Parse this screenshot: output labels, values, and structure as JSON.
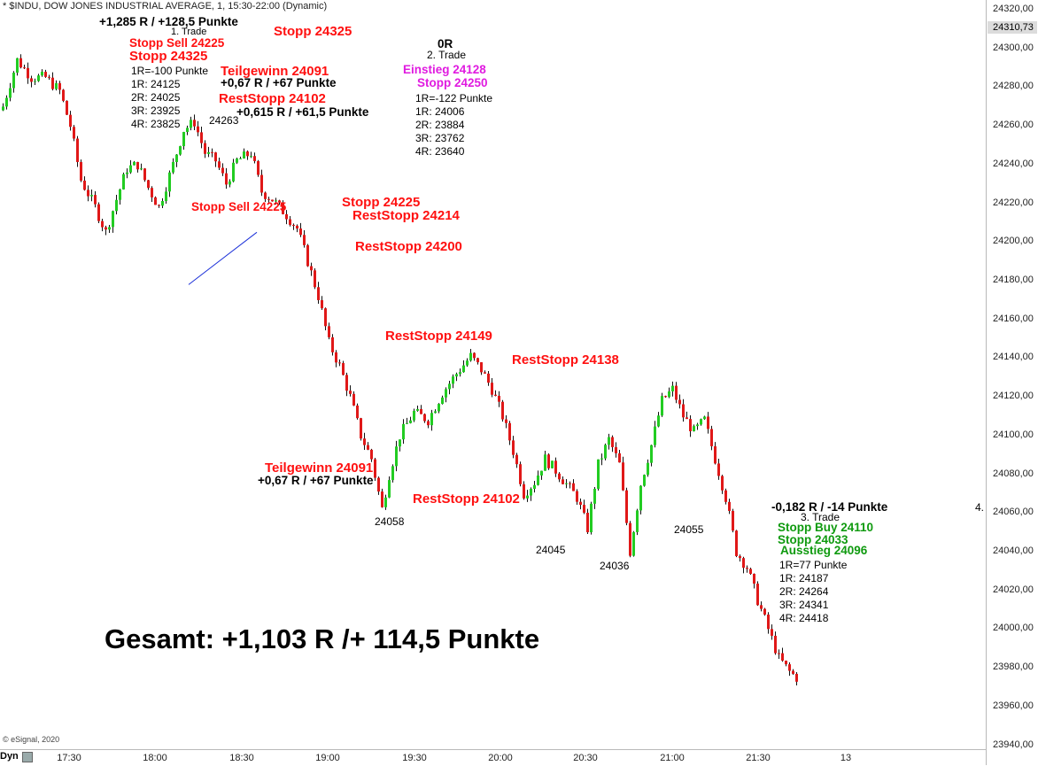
{
  "header": {
    "title": "* $INDU, DOW JONES INDUSTRIAL AVERAGE, 1, 15:30-22:00 (Dynamic)"
  },
  "price_axis": {
    "labels": [
      "24320,00",
      "24300,00",
      "24280,00",
      "24260,00",
      "24240,00",
      "24220,00",
      "24200,00",
      "24180,00",
      "24160,00",
      "24140,00",
      "24120,00",
      "24100,00",
      "24080,00",
      "24060,00",
      "24040,00",
      "24020,00",
      "24000,00",
      "23980,00",
      "23960,00",
      "23940,00"
    ],
    "last_price": "24310,73"
  },
  "time_axis": {
    "labels": [
      "17:30",
      "18:00",
      "18:30",
      "19:00",
      "19:30",
      "20:00",
      "20:30",
      "21:00",
      "21:30",
      "13"
    ]
  },
  "footer": {
    "esignal": "© eSignal, 2020",
    "dyn": "Dyn"
  },
  "annotations": {
    "trade1_result": "+1,285 R / +128,5 Punkte",
    "trade1_label": "1. Trade",
    "trade1_stopp_sell": "Stopp Sell 24225",
    "trade1_stopp": "Stopp 24325",
    "trade1_stopp_top": "Stopp 24325",
    "trade1_r_lines": [
      "1R=-100 Punkte",
      "1R: 24125",
      "2R: 24025",
      "3R: 23925",
      "4R: 23825"
    ],
    "tg1_label": "Teilgewinn 24091",
    "tg1_result": "+0,67 R / +67 Punkte",
    "reststopp1": "RestStopp 24102",
    "reststopp1_result": "+0,615 R / +61,5 Punkte",
    "high_24263": "24263",
    "stopp_sell_chart": "Stopp Sell 24225",
    "trade2_result": "0R",
    "trade2_label": "2. Trade",
    "trade2_einstieg": "Einstieg 24128",
    "trade2_stopp": "Stopp 24250",
    "trade2_r_lines": [
      "1R=-122 Punkte",
      "1R: 24006",
      "2R: 23884",
      "3R: 23762",
      "4R: 23640"
    ],
    "stopp_24225": "Stopp 24225",
    "reststopp_24214": "RestStopp 24214",
    "reststopp_24200": "RestStopp 24200",
    "reststopp_24149": "RestStopp 24149",
    "reststopp_24138": "RestStopp 24138",
    "tg2_label": "Teilgewinn 24091",
    "tg2_result": "+0,67 R / +67 Punkte",
    "reststopp_24102": "RestStopp 24102",
    "low_24058": "24058",
    "low_24045": "24045",
    "low_24036": "24036",
    "low_24055": "24055",
    "trade3_result": "-0,182 R / -14 Punkte",
    "trade3_label": "3. Trade",
    "trade3_stopp_buy": "Stopp Buy 24110",
    "trade3_stopp": "Stopp 24033",
    "trade3_ausstieg": "Ausstieg 24096",
    "trade3_r_lines": [
      "1R=77 Punkte",
      "1R: 24187",
      "2R: 24264",
      "3R: 24341",
      "4R: 24418"
    ],
    "axis_four": "4.",
    "gesamt": "Gesamt: +1,103 R /+ 114,5 Punkte"
  },
  "chart_data": {
    "type": "candlestick",
    "title": "* $INDU, DOW JONES INDUSTRIAL AVERAGE, 1, 15:30-22:00 (Dynamic)",
    "ylim": [
      23938,
      24325
    ],
    "y_ticks": [
      24320,
      24300,
      24280,
      24260,
      24240,
      24220,
      24200,
      24180,
      24160,
      24140,
      24120,
      24100,
      24080,
      24060,
      24040,
      24020,
      24000,
      23980,
      23960,
      23940
    ],
    "x_ticks": [
      "17:30",
      "18:00",
      "18:30",
      "19:00",
      "19:30",
      "20:00",
      "20:30",
      "21:00",
      "21:30",
      "13"
    ],
    "up_color": "#22cc22",
    "down_color": "#e01818",
    "trend_line_color": "#1a2fd8",
    "close_path": [
      [
        0,
        24270
      ],
      [
        4,
        24294
      ],
      [
        8,
        24285
      ],
      [
        12,
        24285
      ],
      [
        16,
        24278
      ],
      [
        19,
        24260
      ],
      [
        22,
        24232
      ],
      [
        26,
        24218
      ],
      [
        29,
        24205
      ],
      [
        32,
        24222
      ],
      [
        35,
        24238
      ],
      [
        38,
        24240
      ],
      [
        41,
        24228
      ],
      [
        44,
        24218
      ],
      [
        48,
        24240
      ],
      [
        51,
        24258
      ],
      [
        54,
        24262
      ],
      [
        57,
        24246
      ],
      [
        60,
        24242
      ],
      [
        63,
        24230
      ],
      [
        66,
        24242
      ],
      [
        70,
        24246
      ],
      [
        73,
        24226
      ],
      [
        76,
        24222
      ],
      [
        80,
        24214
      ],
      [
        83,
        24207
      ],
      [
        86,
        24190
      ],
      [
        89,
        24172
      ],
      [
        92,
        24148
      ],
      [
        95,
        24136
      ],
      [
        98,
        24120
      ],
      [
        101,
        24100
      ],
      [
        104,
        24088
      ],
      [
        107,
        24062
      ],
      [
        109,
        24080
      ],
      [
        112,
        24100
      ],
      [
        116,
        24112
      ],
      [
        120,
        24108
      ],
      [
        124,
        24122
      ],
      [
        128,
        24132
      ],
      [
        132,
        24141
      ],
      [
        135,
        24134
      ],
      [
        138,
        24124
      ],
      [
        141,
        24110
      ],
      [
        144,
        24092
      ],
      [
        147,
        24070
      ],
      [
        150,
        24076
      ],
      [
        153,
        24088
      ],
      [
        156,
        24082
      ],
      [
        159,
        24075
      ],
      [
        162,
        24068
      ],
      [
        165,
        24052
      ],
      [
        168,
        24085
      ],
      [
        171,
        24098
      ],
      [
        174,
        24085
      ],
      [
        177,
        24040
      ],
      [
        180,
        24075
      ],
      [
        183,
        24095
      ],
      [
        186,
        24118
      ],
      [
        189,
        24124
      ],
      [
        192,
        24110
      ],
      [
        195,
        24102
      ],
      [
        198,
        24108
      ],
      [
        201,
        24088
      ],
      [
        204,
        24068
      ],
      [
        207,
        24040
      ],
      [
        210,
        24032
      ],
      [
        213,
        24015
      ],
      [
        216,
        24000
      ],
      [
        219,
        23985
      ],
      [
        222,
        23978
      ],
      [
        224,
        23975
      ]
    ]
  }
}
